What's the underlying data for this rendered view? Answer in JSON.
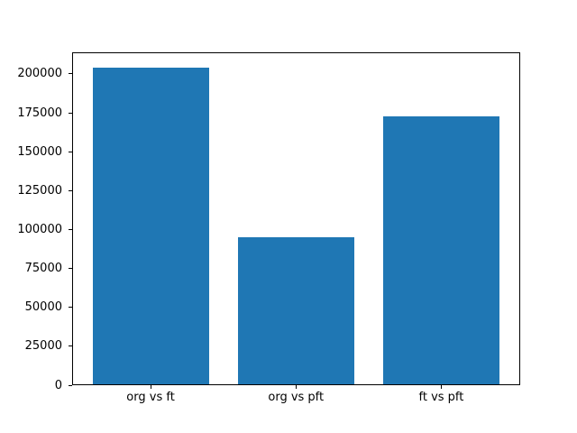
{
  "chart_data": {
    "type": "bar",
    "title": "",
    "xlabel": "",
    "ylabel": "",
    "categories": [
      "org vs ft",
      "org vs pft",
      "ft vs pft"
    ],
    "values": [
      204000,
      95000,
      173000
    ],
    "ylim": [
      0,
      214200
    ],
    "yticks": [
      0,
      25000,
      50000,
      75000,
      100000,
      125000,
      150000,
      175000,
      200000
    ],
    "bar_color": "#1f77b4",
    "spine_color": "#000000",
    "background_color": "#ffffff",
    "grid": false,
    "legend": null
  }
}
